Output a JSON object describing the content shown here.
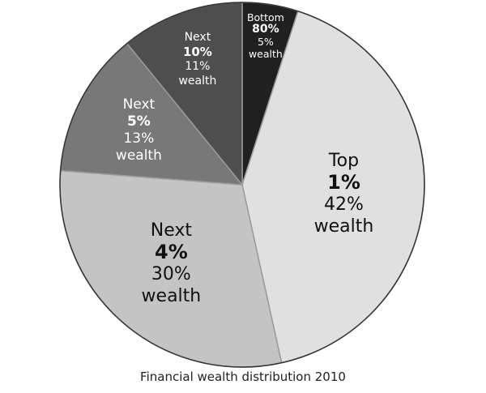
{
  "colors": {
    "slice_top": "#e0e0e0",
    "slice_next4": "#c4c4c4",
    "slice_next5": "#787878",
    "slice_next10": "#4e4e4e",
    "slice_bottom": "#202020",
    "outline": "#333333",
    "divider": "#9a9a9a"
  },
  "chart_data": {
    "type": "pie",
    "title": "Financial wealth distribution 2010",
    "unit": "%",
    "slices": [
      {
        "group_prefix": "Top",
        "group_percent": "1%",
        "share": 42,
        "share_label": "42%",
        "suffix": "wealth",
        "color": "#e0e0e0",
        "text_color": "#111111"
      },
      {
        "group_prefix": "Next",
        "group_percent": "4%",
        "share": 30,
        "share_label": "30%",
        "suffix": "wealth",
        "color": "#c4c4c4",
        "text_color": "#111111"
      },
      {
        "group_prefix": "Next",
        "group_percent": "5%",
        "share": 13,
        "share_label": "13%",
        "suffix": "wealth",
        "color": "#787878",
        "text_color": "#ffffff"
      },
      {
        "group_prefix": "Next",
        "group_percent": "10%",
        "share": 11,
        "share_label": "11%",
        "suffix": "wealth",
        "color": "#4e4e4e",
        "text_color": "#ffffff"
      },
      {
        "group_prefix": "Bottom",
        "group_percent": "80%",
        "share": 5,
        "share_label": "5%",
        "suffix": "wealth",
        "color": "#202020",
        "text_color": "#ffffff"
      }
    ]
  }
}
